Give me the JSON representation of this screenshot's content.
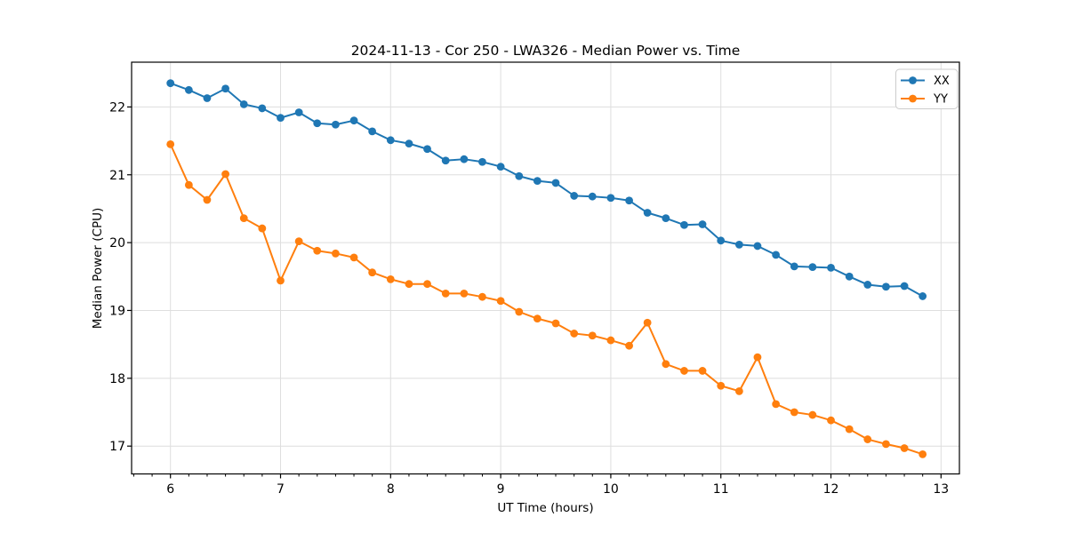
{
  "chart_data": {
    "type": "line",
    "title": "2024-11-13 - Cor 250 - LWA326 - Median Power vs. Time",
    "xlabel": "UT Time (hours)",
    "ylabel": "Median Power (CPU)",
    "x_ticks": [
      6,
      7,
      8,
      9,
      10,
      11,
      12,
      13
    ],
    "y_ticks": [
      17,
      18,
      19,
      20,
      21,
      22
    ],
    "xlim": [
      5.647,
      13.167
    ],
    "ylim": [
      16.59,
      22.66
    ],
    "x_minor_step_hours": 0.1667,
    "grid": true,
    "legend_position": "top-right",
    "x": [
      6.0,
      6.167,
      6.333,
      6.5,
      6.667,
      6.833,
      7.0,
      7.167,
      7.333,
      7.5,
      7.667,
      7.833,
      8.0,
      8.167,
      8.333,
      8.5,
      8.667,
      8.833,
      9.0,
      9.167,
      9.333,
      9.5,
      9.667,
      9.833,
      10.0,
      10.167,
      10.333,
      10.5,
      10.667,
      10.833,
      11.0,
      11.167,
      11.333,
      11.5,
      11.667,
      11.833,
      12.0,
      12.167,
      12.333,
      12.5,
      12.667,
      12.833
    ],
    "series": [
      {
        "name": "XX",
        "color": "#1f77b4",
        "values": [
          22.35,
          22.25,
          22.13,
          22.27,
          22.04,
          21.98,
          21.84,
          21.92,
          21.76,
          21.74,
          21.8,
          21.64,
          21.51,
          21.46,
          21.38,
          21.21,
          21.23,
          21.19,
          21.12,
          20.98,
          20.91,
          20.88,
          20.69,
          20.68,
          20.66,
          20.62,
          20.44,
          20.36,
          20.26,
          20.27,
          20.03,
          19.97,
          19.95,
          19.82,
          19.65,
          19.64,
          19.63,
          19.5,
          19.38,
          19.35,
          19.36,
          19.21
        ]
      },
      {
        "name": "YY",
        "color": "#ff7f0e",
        "values": [
          21.45,
          20.85,
          20.63,
          21.01,
          20.36,
          20.21,
          19.44,
          20.02,
          19.88,
          19.84,
          19.78,
          19.56,
          19.46,
          19.39,
          19.39,
          19.25,
          19.25,
          19.2,
          19.14,
          18.98,
          18.88,
          18.81,
          18.66,
          18.63,
          18.56,
          18.48,
          18.82,
          18.21,
          18.11,
          18.11,
          17.89,
          17.81,
          18.31,
          17.62,
          17.5,
          17.46,
          17.38,
          17.25,
          17.1,
          17.03,
          16.97,
          16.88
        ]
      }
    ]
  },
  "style_colors": {
    "grid": "#dedede",
    "spine": "#000000",
    "legend_border": "#cccccc",
    "legend_background": "rgba(255,255,255,0.85)",
    "background": "#ffffff"
  }
}
